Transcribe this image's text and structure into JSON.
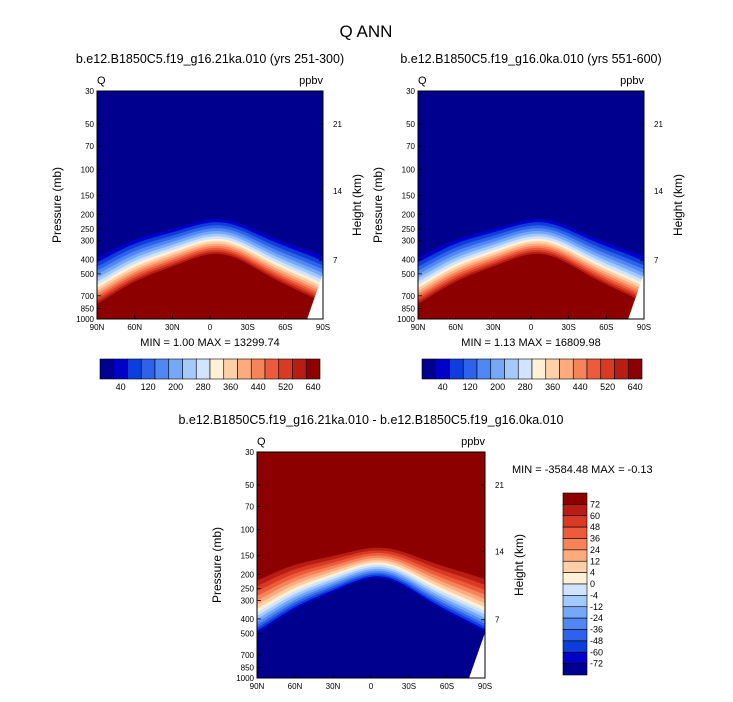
{
  "title": "Q ANN",
  "chart_data": [
    {
      "type": "heatmap",
      "id": "panel1",
      "title": "b.e12.B1850C5.f19_g16.21ka.010 (yrs 251-300)",
      "left_label": "Q",
      "right_label": "ppbv",
      "ylabel": "Pressure (mb)",
      "ylabel_right": "Height (km)",
      "x_ticks": [
        "90N",
        "60N",
        "30N",
        "0",
        "30S",
        "60S",
        "90S"
      ],
      "y_ticks": [
        "30",
        "50",
        "70",
        "100",
        "150",
        "200",
        "250",
        "300",
        "400",
        "500",
        "700",
        "850",
        "1000"
      ],
      "height_ticks": [
        "21",
        "14",
        "7"
      ],
      "ylim_mb": [
        30,
        1000
      ],
      "stats": "MIN =   1.00   MAX = 13299.74",
      "colorbar_labels": [
        "40",
        "120",
        "200",
        "280",
        "360",
        "440",
        "520",
        "640"
      ]
    },
    {
      "type": "heatmap",
      "id": "panel2",
      "title": "b.e12.B1850C5.f19_g16.0ka.010 (yrs 551-600)",
      "left_label": "Q",
      "right_label": "ppbv",
      "ylabel": "Pressure (mb)",
      "ylabel_right": "Height (km)",
      "x_ticks": [
        "90N",
        "60N",
        "30N",
        "0",
        "30S",
        "60S",
        "90S"
      ],
      "y_ticks": [
        "30",
        "50",
        "70",
        "100",
        "150",
        "200",
        "250",
        "300",
        "400",
        "500",
        "700",
        "850",
        "1000"
      ],
      "height_ticks": [
        "21",
        "14",
        "7"
      ],
      "ylim_mb": [
        30,
        1000
      ],
      "stats": "MIN =   1.13   MAX = 16809.98",
      "colorbar_labels": [
        "40",
        "120",
        "200",
        "280",
        "360",
        "440",
        "520",
        "640"
      ]
    },
    {
      "type": "heatmap",
      "id": "panel3",
      "title": "b.e12.B1850C5.f19_g16.21ka.010 - b.e12.B1850C5.f19_g16.0ka.010",
      "left_label": "Q",
      "right_label": "ppbv",
      "ylabel": "Pressure (mb)",
      "ylabel_right": "Height (km)",
      "x_ticks": [
        "90N",
        "60N",
        "30N",
        "0",
        "30S",
        "60S",
        "90S"
      ],
      "y_ticks": [
        "30",
        "50",
        "70",
        "100",
        "150",
        "200",
        "250",
        "300",
        "400",
        "500",
        "700",
        "850",
        "1000"
      ],
      "height_ticks": [
        "21",
        "14",
        "7"
      ],
      "ylim_mb": [
        30,
        1000
      ],
      "stats": "MIN = -3584.48   MAX =  -0.13",
      "colorbar_labels": [
        "72",
        "60",
        "48",
        "36",
        "24",
        "12",
        "4",
        "0",
        "-4",
        "-12",
        "-24",
        "-36",
        "-48",
        "-60",
        "-72"
      ]
    }
  ],
  "colors": {
    "abs_scale": [
      "#00008f",
      "#0000c8",
      "#0d3ddb",
      "#2e62ea",
      "#4f87f5",
      "#76a8fa",
      "#a3c9fd",
      "#d0e4ff",
      "#fff0d6",
      "#ffd0a8",
      "#fdaa7e",
      "#f7835a",
      "#ed5a3c",
      "#d83a24",
      "#b81c12",
      "#8c0000"
    ],
    "diff_scale": [
      "#8c0000",
      "#b81c12",
      "#d83a24",
      "#ed5a3c",
      "#f7835a",
      "#fdaa7e",
      "#ffd0a8",
      "#fff0d6",
      "#d0e4ff",
      "#a3c9fd",
      "#76a8fa",
      "#4f87f5",
      "#2e62ea",
      "#0d3ddb",
      "#0000c8",
      "#00008f"
    ]
  }
}
